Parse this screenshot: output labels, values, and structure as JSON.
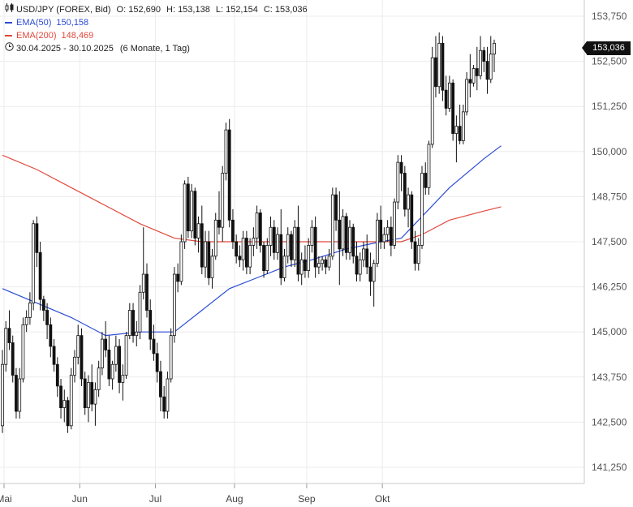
{
  "legend": {
    "symbol": "USD/JPY (FOREX, Bid)",
    "o_label": "O:",
    "o": "152,690",
    "h_label": "H:",
    "h": "153,138",
    "l_label": "L:",
    "l": "152,154",
    "c_label": "C:",
    "c": "153,036",
    "ema50_label": "EMA(50)",
    "ema50_value": "150,158",
    "ema50_color": "#2b4bd6",
    "ema200_label": "EMA(200)",
    "ema200_value": "148,469",
    "ema200_color": "#e0493c",
    "range": "30.04.2025 - 30.10.2025",
    "range_detail": "(6 Monate, 1 Tag)"
  },
  "last_price_tag": "153,036",
  "chart_data": {
    "type": "candlestick",
    "y_ticks": [
      "153,750",
      "152,500",
      "151,250",
      "150,000",
      "148,750",
      "147,500",
      "146,250",
      "145,000",
      "143,750",
      "142,500",
      "141,250"
    ],
    "x_labels": [
      "Mai",
      "Jun",
      "Jul",
      "Aug",
      "Sep",
      "Okt"
    ],
    "ylim": [
      140.8,
      154.2
    ],
    "grid": true,
    "candles": [
      [
        142.4,
        144.5,
        142.2,
        144.1
      ],
      [
        144.1,
        145.3,
        143.9,
        145.1
      ],
      [
        145.1,
        145.6,
        144.5,
        144.7
      ],
      [
        144.7,
        144.9,
        143.6,
        143.8
      ],
      [
        143.8,
        144.0,
        142.6,
        142.8
      ],
      [
        142.8,
        144.0,
        142.6,
        143.7
      ],
      [
        143.7,
        145.4,
        143.6,
        145.2
      ],
      [
        145.2,
        145.6,
        145.0,
        145.4
      ],
      [
        145.4,
        146.1,
        145.2,
        145.8
      ],
      [
        145.8,
        148.1,
        145.6,
        148.0
      ],
      [
        148.0,
        148.2,
        146.8,
        147.2
      ],
      [
        147.2,
        147.5,
        145.6,
        145.9
      ],
      [
        145.9,
        146.0,
        145.3,
        145.6
      ],
      [
        145.6,
        145.8,
        144.8,
        145.2
      ],
      [
        145.2,
        145.4,
        144.3,
        144.6
      ],
      [
        144.6,
        144.8,
        143.9,
        144.1
      ],
      [
        144.1,
        144.3,
        143.2,
        143.5
      ],
      [
        143.5,
        143.7,
        142.6,
        142.9
      ],
      [
        142.9,
        143.4,
        142.5,
        143.1
      ],
      [
        143.1,
        143.2,
        142.2,
        142.4
      ],
      [
        142.4,
        144.0,
        142.3,
        143.8
      ],
      [
        143.8,
        144.5,
        143.6,
        144.3
      ],
      [
        144.3,
        145.2,
        144.1,
        144.9
      ],
      [
        144.9,
        145.1,
        143.5,
        143.7
      ],
      [
        143.7,
        143.9,
        142.7,
        142.9
      ],
      [
        142.9,
        143.8,
        142.5,
        143.6
      ],
      [
        143.6,
        144.1,
        142.8,
        143.0
      ],
      [
        143.0,
        143.6,
        142.4,
        143.4
      ],
      [
        143.4,
        144.2,
        143.2,
        144.0
      ],
      [
        144.0,
        145.0,
        143.8,
        144.8
      ],
      [
        144.8,
        145.3,
        144.3,
        144.5
      ],
      [
        144.5,
        144.9,
        143.5,
        143.7
      ],
      [
        143.7,
        144.2,
        143.4,
        144.1
      ],
      [
        144.1,
        144.9,
        143.9,
        144.6
      ],
      [
        144.6,
        144.8,
        143.3,
        143.6
      ],
      [
        143.6,
        144.1,
        143.1,
        143.8
      ],
      [
        143.8,
        145.0,
        143.7,
        144.9
      ],
      [
        144.9,
        145.8,
        144.8,
        145.6
      ],
      [
        145.6,
        145.8,
        144.7,
        144.9
      ],
      [
        144.9,
        145.3,
        144.6,
        145.0
      ],
      [
        145.0,
        146.3,
        144.8,
        146.1
      ],
      [
        146.1,
        147.9,
        145.9,
        146.6
      ],
      [
        146.6,
        146.9,
        145.4,
        145.6
      ],
      [
        145.6,
        145.9,
        144.5,
        144.8
      ],
      [
        144.8,
        145.2,
        144.2,
        144.4
      ],
      [
        144.4,
        144.7,
        143.6,
        143.9
      ],
      [
        143.9,
        144.2,
        142.8,
        143.2
      ],
      [
        143.2,
        143.5,
        142.6,
        142.8
      ],
      [
        142.8,
        143.9,
        142.6,
        143.7
      ],
      [
        143.7,
        145.1,
        143.6,
        144.9
      ],
      [
        144.9,
        146.8,
        144.7,
        146.6
      ],
      [
        146.6,
        146.9,
        146.1,
        146.4
      ],
      [
        146.4,
        147.7,
        146.3,
        147.5
      ],
      [
        147.5,
        149.2,
        147.3,
        149.1
      ],
      [
        149.1,
        149.3,
        147.6,
        147.8
      ],
      [
        147.8,
        149.1,
        147.6,
        148.9
      ],
      [
        148.9,
        149.0,
        147.4,
        147.6
      ],
      [
        147.6,
        148.2,
        147.2,
        148.0
      ],
      [
        148.0,
        148.5,
        146.6,
        146.8
      ],
      [
        146.8,
        147.8,
        146.5,
        147.5
      ],
      [
        147.5,
        147.8,
        146.3,
        146.5
      ],
      [
        146.5,
        147.3,
        146.2,
        147.1
      ],
      [
        147.1,
        148.3,
        147.0,
        148.1
      ],
      [
        148.1,
        148.9,
        147.7,
        147.9
      ],
      [
        147.9,
        149.6,
        147.5,
        149.4
      ],
      [
        149.4,
        150.8,
        149.2,
        150.6
      ],
      [
        150.6,
        150.9,
        147.9,
        148.1
      ],
      [
        148.1,
        148.4,
        147.3,
        147.5
      ],
      [
        147.5,
        147.7,
        146.9,
        147.1
      ],
      [
        147.1,
        147.4,
        146.8,
        147.0
      ],
      [
        147.0,
        147.8,
        146.7,
        147.6
      ],
      [
        147.6,
        147.8,
        146.6,
        146.8
      ],
      [
        146.8,
        147.6,
        146.6,
        147.4
      ],
      [
        147.4,
        147.9,
        147.1,
        147.6
      ],
      [
        147.6,
        148.5,
        147.3,
        148.3
      ],
      [
        148.3,
        148.4,
        147.2,
        147.4
      ],
      [
        147.4,
        147.5,
        146.5,
        146.7
      ],
      [
        146.7,
        147.6,
        146.6,
        147.4
      ],
      [
        147.4,
        148.2,
        147.1,
        147.9
      ],
      [
        147.9,
        148.1,
        147.0,
        147.2
      ],
      [
        147.2,
        147.9,
        147.0,
        147.7
      ],
      [
        147.7,
        148.4,
        146.3,
        146.5
      ],
      [
        146.5,
        147.3,
        146.4,
        147.1
      ],
      [
        147.1,
        147.9,
        146.9,
        147.7
      ],
      [
        147.7,
        147.8,
        146.8,
        147.0
      ],
      [
        147.0,
        148.1,
        146.8,
        147.9
      ],
      [
        147.9,
        148.5,
        146.4,
        146.6
      ],
      [
        146.6,
        147.2,
        146.3,
        147.0
      ],
      [
        147.0,
        147.4,
        146.5,
        146.7
      ],
      [
        146.7,
        147.6,
        146.5,
        147.4
      ],
      [
        147.4,
        148.1,
        147.2,
        147.9
      ],
      [
        147.9,
        148.2,
        146.5,
        146.8
      ],
      [
        146.8,
        147.1,
        146.6,
        146.9
      ],
      [
        146.9,
        147.1,
        146.7,
        147.0
      ],
      [
        147.0,
        147.1,
        146.6,
        146.8
      ],
      [
        146.8,
        147.3,
        146.7,
        147.1
      ],
      [
        147.1,
        149.0,
        147.0,
        148.8
      ],
      [
        148.8,
        149.0,
        147.8,
        148.1
      ],
      [
        148.1,
        148.9,
        146.3,
        147.3
      ],
      [
        147.3,
        148.4,
        147.1,
        148.2
      ],
      [
        148.2,
        148.3,
        147.0,
        147.2
      ],
      [
        147.2,
        148.1,
        147.0,
        147.9
      ],
      [
        147.9,
        148.0,
        146.9,
        147.1
      ],
      [
        147.1,
        147.5,
        146.4,
        146.6
      ],
      [
        146.6,
        147.2,
        146.4,
        147.0
      ],
      [
        147.0,
        147.5,
        146.8,
        147.3
      ],
      [
        147.3,
        147.7,
        146.6,
        146.8
      ],
      [
        146.8,
        147.2,
        146.0,
        146.4
      ],
      [
        146.4,
        147.0,
        145.7,
        146.9
      ],
      [
        146.9,
        148.3,
        146.8,
        148.1
      ],
      [
        148.1,
        148.5,
        147.3,
        147.5
      ],
      [
        147.5,
        147.9,
        147.3,
        147.7
      ],
      [
        147.7,
        148.1,
        147.5,
        147.9
      ],
      [
        147.9,
        148.2,
        147.1,
        147.4
      ],
      [
        147.4,
        148.7,
        147.3,
        148.6
      ],
      [
        148.6,
        149.9,
        148.4,
        149.7
      ],
      [
        149.7,
        149.9,
        148.9,
        149.4
      ],
      [
        149.4,
        149.6,
        148.2,
        148.4
      ],
      [
        148.4,
        149.0,
        147.9,
        148.8
      ],
      [
        148.8,
        148.9,
        147.3,
        147.5
      ],
      [
        147.5,
        147.8,
        146.7,
        146.9
      ],
      [
        146.9,
        147.6,
        146.7,
        147.4
      ],
      [
        147.4,
        149.6,
        147.3,
        149.4
      ],
      [
        149.4,
        149.7,
        148.8,
        149.0
      ],
      [
        149.0,
        150.3,
        148.8,
        150.2
      ],
      [
        150.2,
        152.9,
        150.1,
        152.6
      ],
      [
        152.6,
        153.2,
        151.5,
        151.8
      ],
      [
        151.8,
        153.3,
        151.6,
        153.0
      ],
      [
        153.0,
        153.2,
        151.4,
        151.7
      ],
      [
        151.7,
        152.1,
        151.0,
        151.2
      ],
      [
        151.2,
        152.1,
        151.1,
        151.9
      ],
      [
        151.9,
        152.0,
        150.3,
        150.5
      ],
      [
        150.5,
        151.0,
        149.7,
        150.7
      ],
      [
        150.7,
        151.3,
        150.2,
        150.3
      ],
      [
        150.3,
        151.3,
        150.2,
        151.1
      ],
      [
        151.1,
        152.2,
        151.0,
        152.0
      ],
      [
        152.0,
        152.7,
        151.5,
        151.9
      ],
      [
        151.9,
        152.4,
        151.8,
        152.3
      ],
      [
        152.3,
        152.9,
        151.7,
        152.1
      ],
      [
        152.1,
        153.2,
        152.0,
        152.8
      ],
      [
        152.8,
        152.9,
        152.2,
        152.5
      ],
      [
        152.5,
        152.9,
        151.6,
        152.0
      ],
      [
        152.0,
        153.2,
        151.9,
        152.7
      ],
      [
        152.7,
        153.1,
        152.2,
        153.0
      ]
    ],
    "ema50": [
      [
        0,
        146.2
      ],
      [
        10,
        145.8
      ],
      [
        20,
        145.4
      ],
      [
        30,
        144.9
      ],
      [
        40,
        145.0
      ],
      [
        50,
        145.0
      ],
      [
        58,
        145.6
      ],
      [
        66,
        146.2
      ],
      [
        74,
        146.5
      ],
      [
        82,
        146.8
      ],
      [
        90,
        147.0
      ],
      [
        100,
        147.3
      ],
      [
        110,
        147.5
      ],
      [
        116,
        147.6
      ],
      [
        122,
        148.2
      ],
      [
        130,
        149.0
      ],
      [
        140,
        149.8
      ],
      [
        145,
        150.16
      ]
    ],
    "ema200": [
      [
        0,
        149.9
      ],
      [
        10,
        149.5
      ],
      [
        20,
        149.0
      ],
      [
        30,
        148.5
      ],
      [
        40,
        148.0
      ],
      [
        50,
        147.6
      ],
      [
        58,
        147.5
      ],
      [
        66,
        147.5
      ],
      [
        74,
        147.5
      ],
      [
        82,
        147.5
      ],
      [
        90,
        147.5
      ],
      [
        100,
        147.5
      ],
      [
        110,
        147.5
      ],
      [
        116,
        147.5
      ],
      [
        122,
        147.7
      ],
      [
        130,
        148.1
      ],
      [
        140,
        148.35
      ],
      [
        145,
        148.47
      ]
    ]
  }
}
